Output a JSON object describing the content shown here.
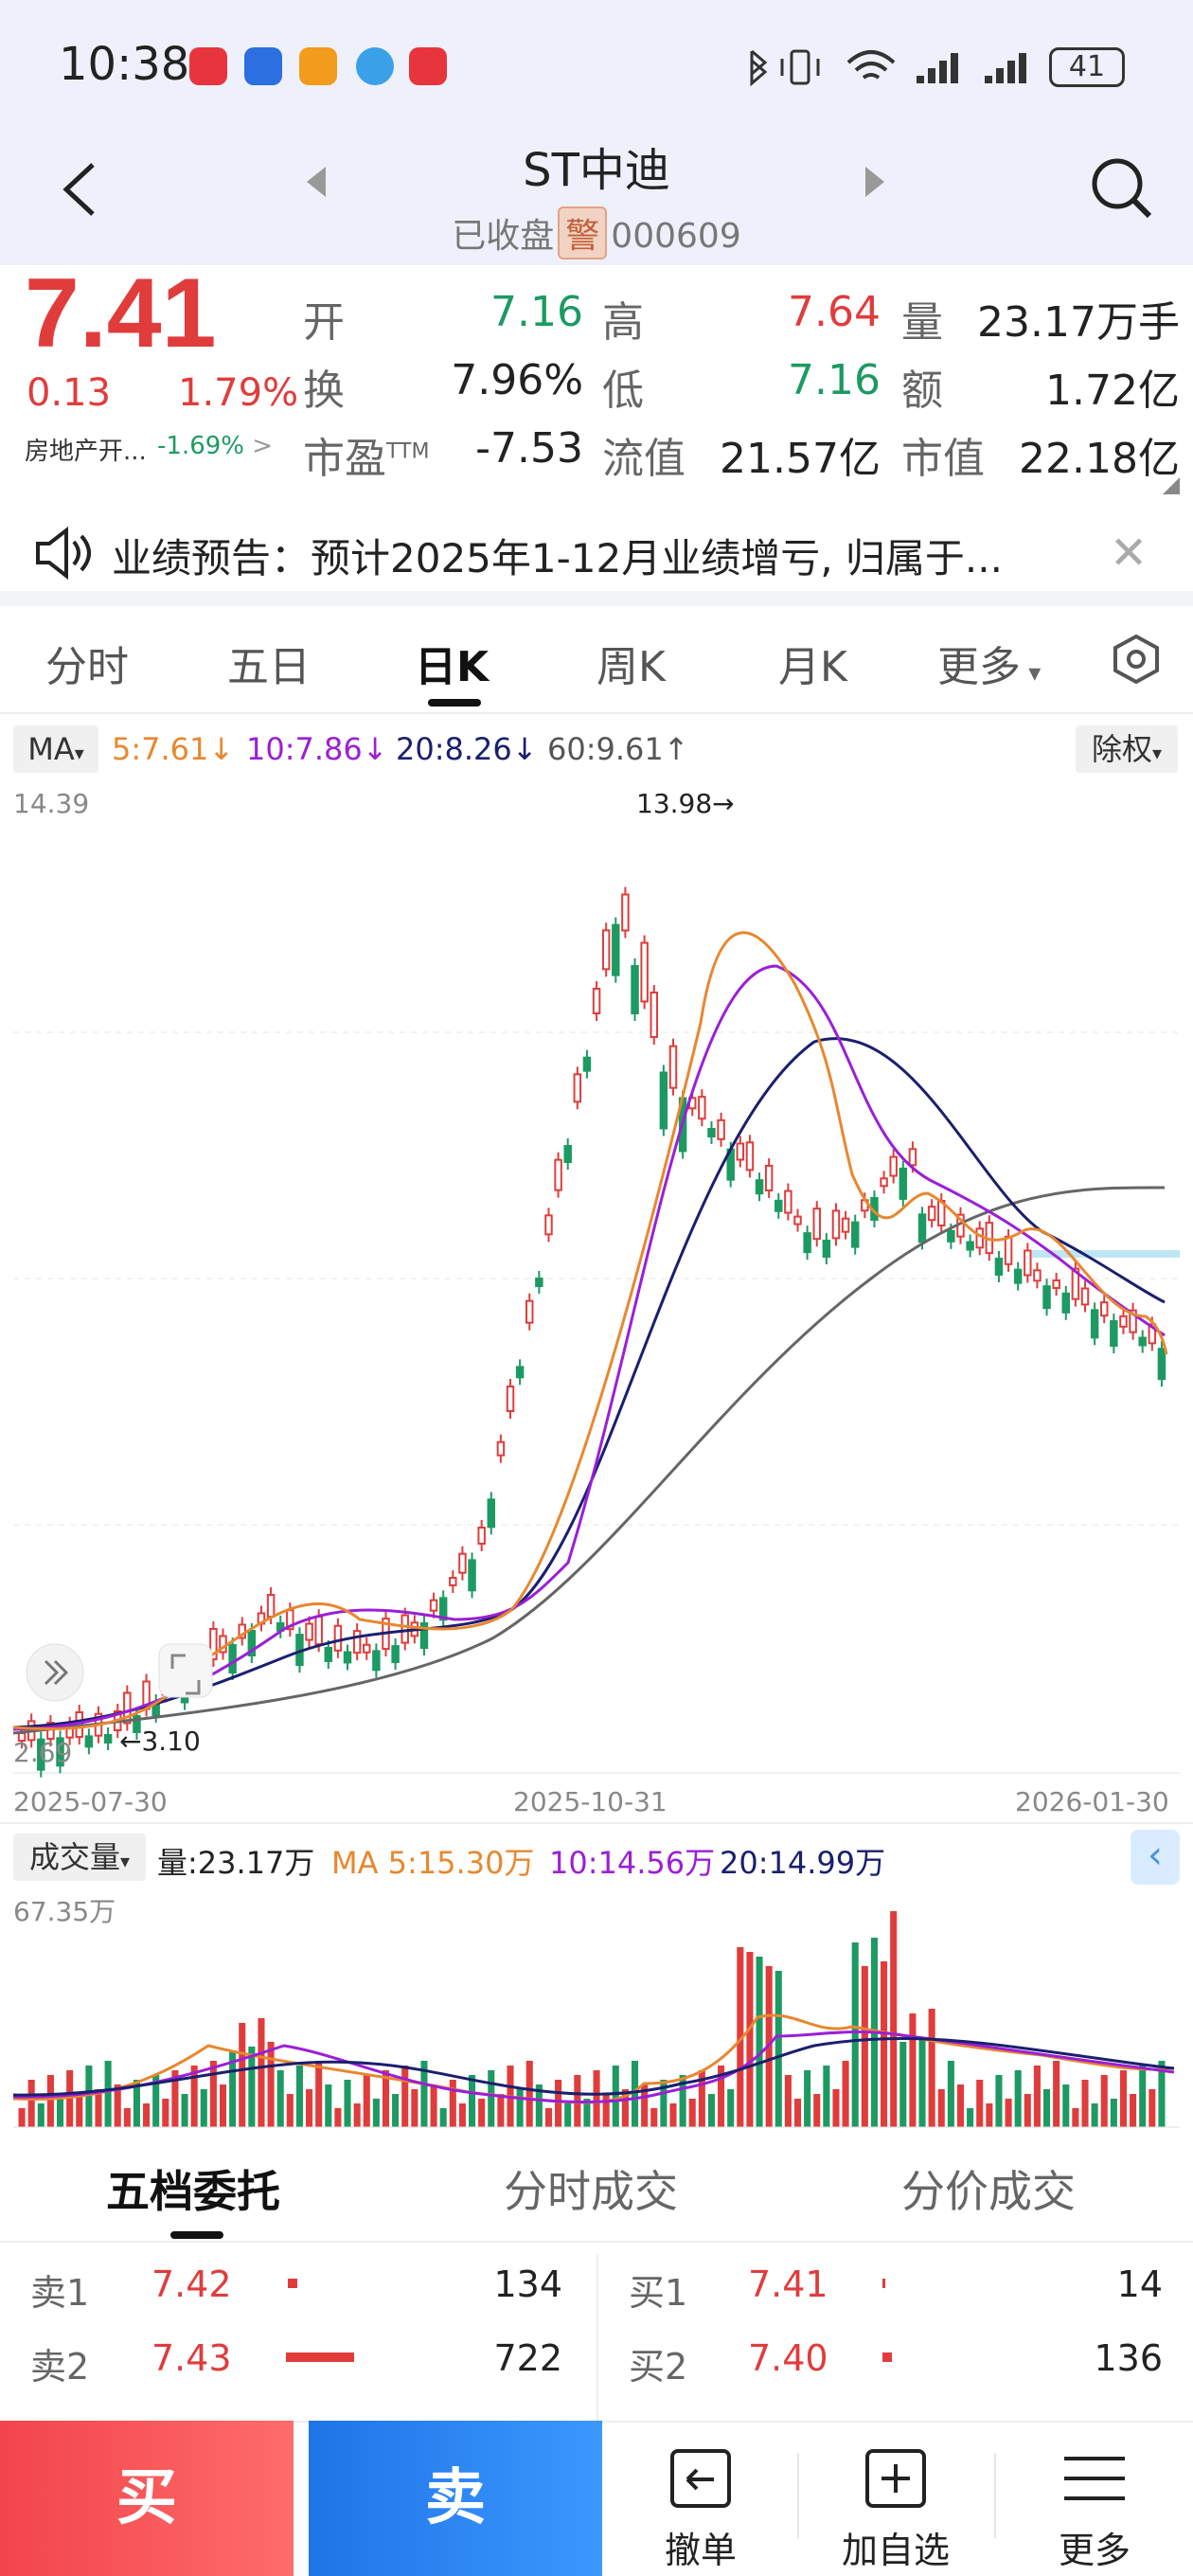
{
  "status": {
    "time": "10:38",
    "battery": "41"
  },
  "header": {
    "title": "ST中迪",
    "status": "已收盘",
    "warning": "警",
    "code": "000609"
  },
  "quote": {
    "price": "7.41",
    "change": "0.13",
    "change_pct": "1.79%",
    "sector_name": "房地产开...",
    "sector_change": "-1.69%",
    "fields": [
      {
        "label": "开",
        "value": "7.16"
      },
      {
        "label": "高",
        "value": "7.64"
      },
      {
        "label": "量",
        "value": "23.17万手"
      },
      {
        "label": "换",
        "value": "7.96%"
      },
      {
        "label": "低",
        "value": "7.16"
      },
      {
        "label": "额",
        "value": "1.72亿"
      },
      {
        "label": "市盈",
        "label_sup": "TTM",
        "value": "-7.53"
      },
      {
        "label": "流值",
        "value": "21.57亿"
      },
      {
        "label": "市值",
        "value": "22.18亿"
      }
    ]
  },
  "notice": {
    "text": "业绩预告：预计2025年1-12月业绩增亏, 归属于..."
  },
  "tabs": [
    "分时",
    "五日",
    "日K",
    "周K",
    "月K",
    "更多"
  ],
  "ma": {
    "label": "MA",
    "items": [
      {
        "text": "5:7.61↓",
        "color": "#e8872f"
      },
      {
        "text": "10:7.86↓",
        "color": "#9b1fd6"
      },
      {
        "text": "20:8.26↓",
        "color": "#1a1f6e"
      },
      {
        "text": "60:9.61↑",
        "color": "#555555"
      }
    ],
    "adjust": "除权"
  },
  "kline_axis": {
    "y_top": "14.39",
    "y_bottom": "2.69",
    "high_marker": "13.98→",
    "low_marker": "←3.10",
    "x_labels": [
      "2025-07-30",
      "2025-10-31",
      "2026-01-30"
    ]
  },
  "volume": {
    "label": "成交量",
    "items": [
      {
        "text": "量:23.17万",
        "color": "#222222"
      },
      {
        "text": "MA 5:15.30万",
        "color": "#e8872f"
      },
      {
        "text": "10:14.56万",
        "color": "#9b1fd6"
      },
      {
        "text": "20:14.99万",
        "color": "#1a1f6e"
      }
    ],
    "y_top": "67.35万"
  },
  "order_tabs": [
    "五档委托",
    "分时成交",
    "分价成交"
  ],
  "orderbook": {
    "sell": [
      {
        "label": "卖1",
        "price": "7.42",
        "qty": "134"
      },
      {
        "label": "卖2",
        "price": "7.43",
        "qty": "722"
      }
    ],
    "buy": [
      {
        "label": "买1",
        "price": "7.41",
        "qty": "14"
      },
      {
        "label": "买2",
        "price": "7.40",
        "qty": "136"
      }
    ]
  },
  "bottom": {
    "buy": "买",
    "sell": "卖",
    "actions": [
      "撤单",
      "加自选",
      "更多"
    ]
  }
}
